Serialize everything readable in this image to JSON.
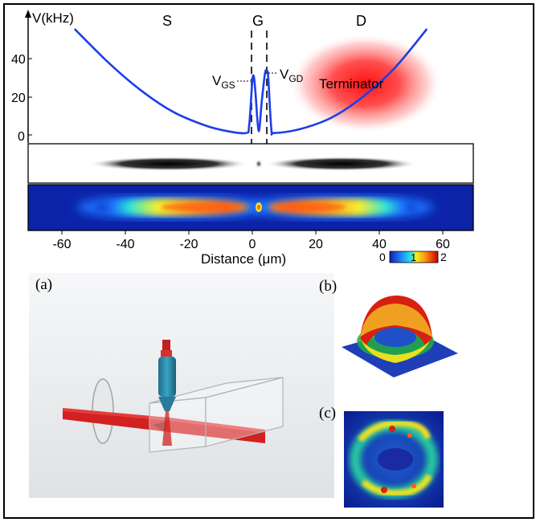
{
  "figure": {
    "top_plot": {
      "y_axis_label": "V(kHz)",
      "y_ticks": [
        "40",
        "20",
        "0"
      ],
      "region_labels": [
        "S",
        "G",
        "D"
      ],
      "annotations": {
        "vgs_main": "V",
        "vgs_sub": "GS",
        "vgd_main": "V",
        "vgd_sub": "GD",
        "terminator": "Terminator"
      },
      "curve_color": "#1e3ee6",
      "terminator_color": "#ff1a1a"
    },
    "x_axis": {
      "label": "Distance (μm)",
      "ticks": [
        "-60",
        "-40",
        "-20",
        "0",
        "20",
        "40",
        "60"
      ]
    },
    "colorbar": {
      "labels": [
        "0",
        "1",
        "2"
      ]
    },
    "panels": {
      "a": "(a)",
      "b": "(b)",
      "c": "(c)"
    }
  },
  "chart_data": {
    "type": "line",
    "x": [
      -56,
      -45,
      -35,
      -25,
      -15,
      -8,
      -2,
      -1,
      0,
      0.5,
      1,
      2,
      3,
      4,
      4.5,
      5,
      6,
      7,
      15,
      25,
      35,
      45,
      55
    ],
    "series": [
      {
        "values": [
          55,
          37,
          23,
          12,
          5,
          2,
          1,
          5,
          28,
          30,
          22,
          2,
          18,
          32,
          33,
          30,
          3,
          1,
          3,
          9,
          20,
          35,
          55
        ]
      }
    ],
    "xlabel": "Distance (μm)",
    "ylabel": "V(kHz)",
    "xlim": [
      -70,
      70
    ],
    "ylim": [
      0,
      55
    ],
    "annotations": [
      "S",
      "G",
      "D",
      "VGS",
      "VGD",
      "Terminator"
    ]
  }
}
